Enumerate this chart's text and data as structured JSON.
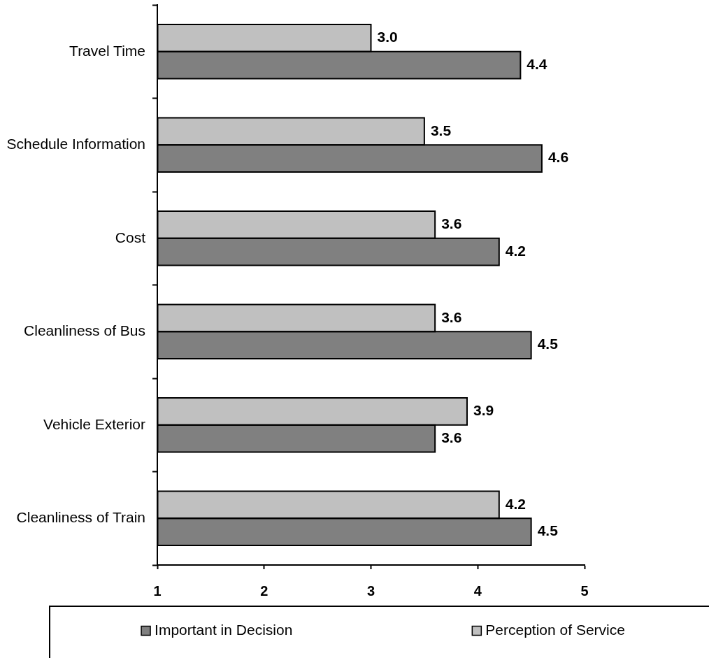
{
  "chart_data": {
    "type": "bar",
    "orientation": "horizontal",
    "categories": [
      "Travel Time",
      "Schedule Information",
      "Cost",
      "Cleanliness of Bus",
      "Vehicle Exterior",
      "Cleanliness of Train"
    ],
    "series": [
      {
        "name": "Important in Decision",
        "color": "#808080",
        "values": [
          4.4,
          4.6,
          4.2,
          4.5,
          3.6,
          4.5
        ],
        "value_labels": [
          "4.4",
          "4.6",
          "4.2",
          "4.5",
          "3.6",
          "4.5"
        ]
      },
      {
        "name": "Perception of Service",
        "color": "#c0c0c0",
        "values": [
          3.0,
          3.5,
          3.6,
          3.6,
          3.9,
          4.2
        ],
        "value_labels": [
          "3.0",
          "3.5",
          "3.6",
          "3.6",
          "3.9",
          "4.2"
        ]
      }
    ],
    "xlim": [
      1,
      5
    ],
    "xticks": [
      1,
      2,
      3,
      4,
      5
    ],
    "grid": false,
    "legend": "bottom"
  }
}
